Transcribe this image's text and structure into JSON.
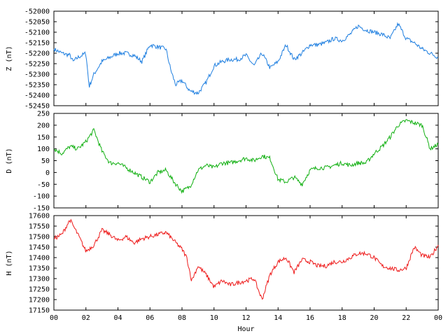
{
  "chart_data": [
    {
      "type": "line",
      "ylabel": "Z (nT)",
      "ylim": [
        -52450,
        -52000
      ],
      "yticks": [
        "-52000",
        "-52050",
        "-52100",
        "-52150",
        "-52200",
        "-52250",
        "-52300",
        "-52350",
        "-52400",
        "-52450"
      ],
      "color": "#1f7fe0",
      "x": [
        0,
        0.5,
        1,
        1.2,
        1.5,
        2,
        2.2,
        2.5,
        3,
        3.5,
        4,
        4.5,
        5,
        5.5,
        6,
        6.5,
        7,
        7.3,
        7.6,
        8,
        8.5,
        9,
        9.5,
        10,
        10.5,
        11,
        11.5,
        12,
        12.5,
        13,
        13.5,
        14,
        14.5,
        15,
        15.5,
        16,
        16.5,
        17,
        17.5,
        18,
        18.5,
        19,
        19.5,
        20,
        20.5,
        21,
        21.5,
        22,
        22.5,
        23,
        23.5,
        24
      ],
      "y": [
        -52180,
        -52200,
        -52210,
        -52240,
        -52220,
        -52200,
        -52360,
        -52300,
        -52240,
        -52220,
        -52200,
        -52200,
        -52210,
        -52240,
        -52160,
        -52170,
        -52180,
        -52280,
        -52350,
        -52330,
        -52380,
        -52390,
        -52340,
        -52260,
        -52240,
        -52230,
        -52230,
        -52210,
        -52260,
        -52200,
        -52270,
        -52240,
        -52160,
        -52230,
        -52200,
        -52160,
        -52160,
        -52150,
        -52130,
        -52140,
        -52110,
        -52070,
        -52090,
        -52100,
        -52110,
        -52130,
        -52060,
        -52130,
        -52150,
        -52180,
        -52200,
        -52220
      ]
    },
    {
      "type": "line",
      "ylabel": "D (nT)",
      "ylim": [
        -150,
        250
      ],
      "yticks": [
        "250",
        "200",
        "150",
        "100",
        "50",
        "0",
        "-50",
        "-100",
        "-150"
      ],
      "color": "#12b012",
      "x": [
        0,
        0.5,
        1,
        1.5,
        2,
        2.5,
        3,
        3.5,
        4,
        4.5,
        5,
        5.5,
        6,
        6.5,
        7,
        7.5,
        8,
        8.5,
        9,
        9.5,
        10,
        10.5,
        11,
        11.5,
        12,
        12.5,
        13,
        13.5,
        14,
        14.5,
        15,
        15.5,
        16,
        16.5,
        17,
        17.5,
        18,
        18.5,
        19,
        19.5,
        20,
        20.5,
        21,
        21.5,
        22,
        22.5,
        23,
        23.5,
        24
      ],
      "y": [
        100,
        80,
        110,
        100,
        130,
        180,
        90,
        40,
        40,
        20,
        0,
        -20,
        -40,
        0,
        10,
        -40,
        -80,
        -60,
        10,
        30,
        20,
        40,
        40,
        50,
        60,
        50,
        70,
        60,
        -30,
        -40,
        -20,
        -50,
        10,
        20,
        20,
        30,
        40,
        30,
        40,
        40,
        80,
        110,
        150,
        200,
        220,
        210,
        200,
        100,
        120
      ]
    },
    {
      "type": "line",
      "ylabel": "H (nT)",
      "ylim": [
        17150,
        17600
      ],
      "yticks": [
        "17600",
        "17550",
        "17500",
        "17450",
        "17400",
        "17350",
        "17300",
        "17250",
        "17200",
        "17150"
      ],
      "color": "#ee1b1b",
      "xlabel": "Hour",
      "xticks": [
        "00",
        "02",
        "04",
        "06",
        "08",
        "10",
        "12",
        "14",
        "16",
        "18",
        "20",
        "22",
        "00"
      ],
      "x": [
        0,
        0.5,
        1,
        1.5,
        2,
        2.5,
        3,
        3.5,
        4,
        4.5,
        5,
        5.5,
        6,
        6.5,
        7,
        7.5,
        8,
        8.3,
        8.6,
        9,
        9.5,
        10,
        10.5,
        11,
        11.5,
        12,
        12.5,
        13,
        13.5,
        14,
        14.5,
        15,
        15.5,
        16,
        16.5,
        17,
        17.5,
        18,
        18.5,
        19,
        19.5,
        20,
        20.5,
        21,
        21.5,
        22,
        22.5,
        23,
        23.5,
        24
      ],
      "y": [
        17490,
        17510,
        17580,
        17510,
        17430,
        17460,
        17530,
        17510,
        17480,
        17500,
        17470,
        17490,
        17500,
        17510,
        17520,
        17480,
        17440,
        17400,
        17290,
        17360,
        17320,
        17260,
        17290,
        17270,
        17280,
        17290,
        17300,
        17200,
        17320,
        17380,
        17400,
        17330,
        17390,
        17380,
        17360,
        17360,
        17380,
        17380,
        17400,
        17420,
        17420,
        17400,
        17360,
        17350,
        17340,
        17350,
        17450,
        17410,
        17400,
        17460
      ]
    }
  ]
}
